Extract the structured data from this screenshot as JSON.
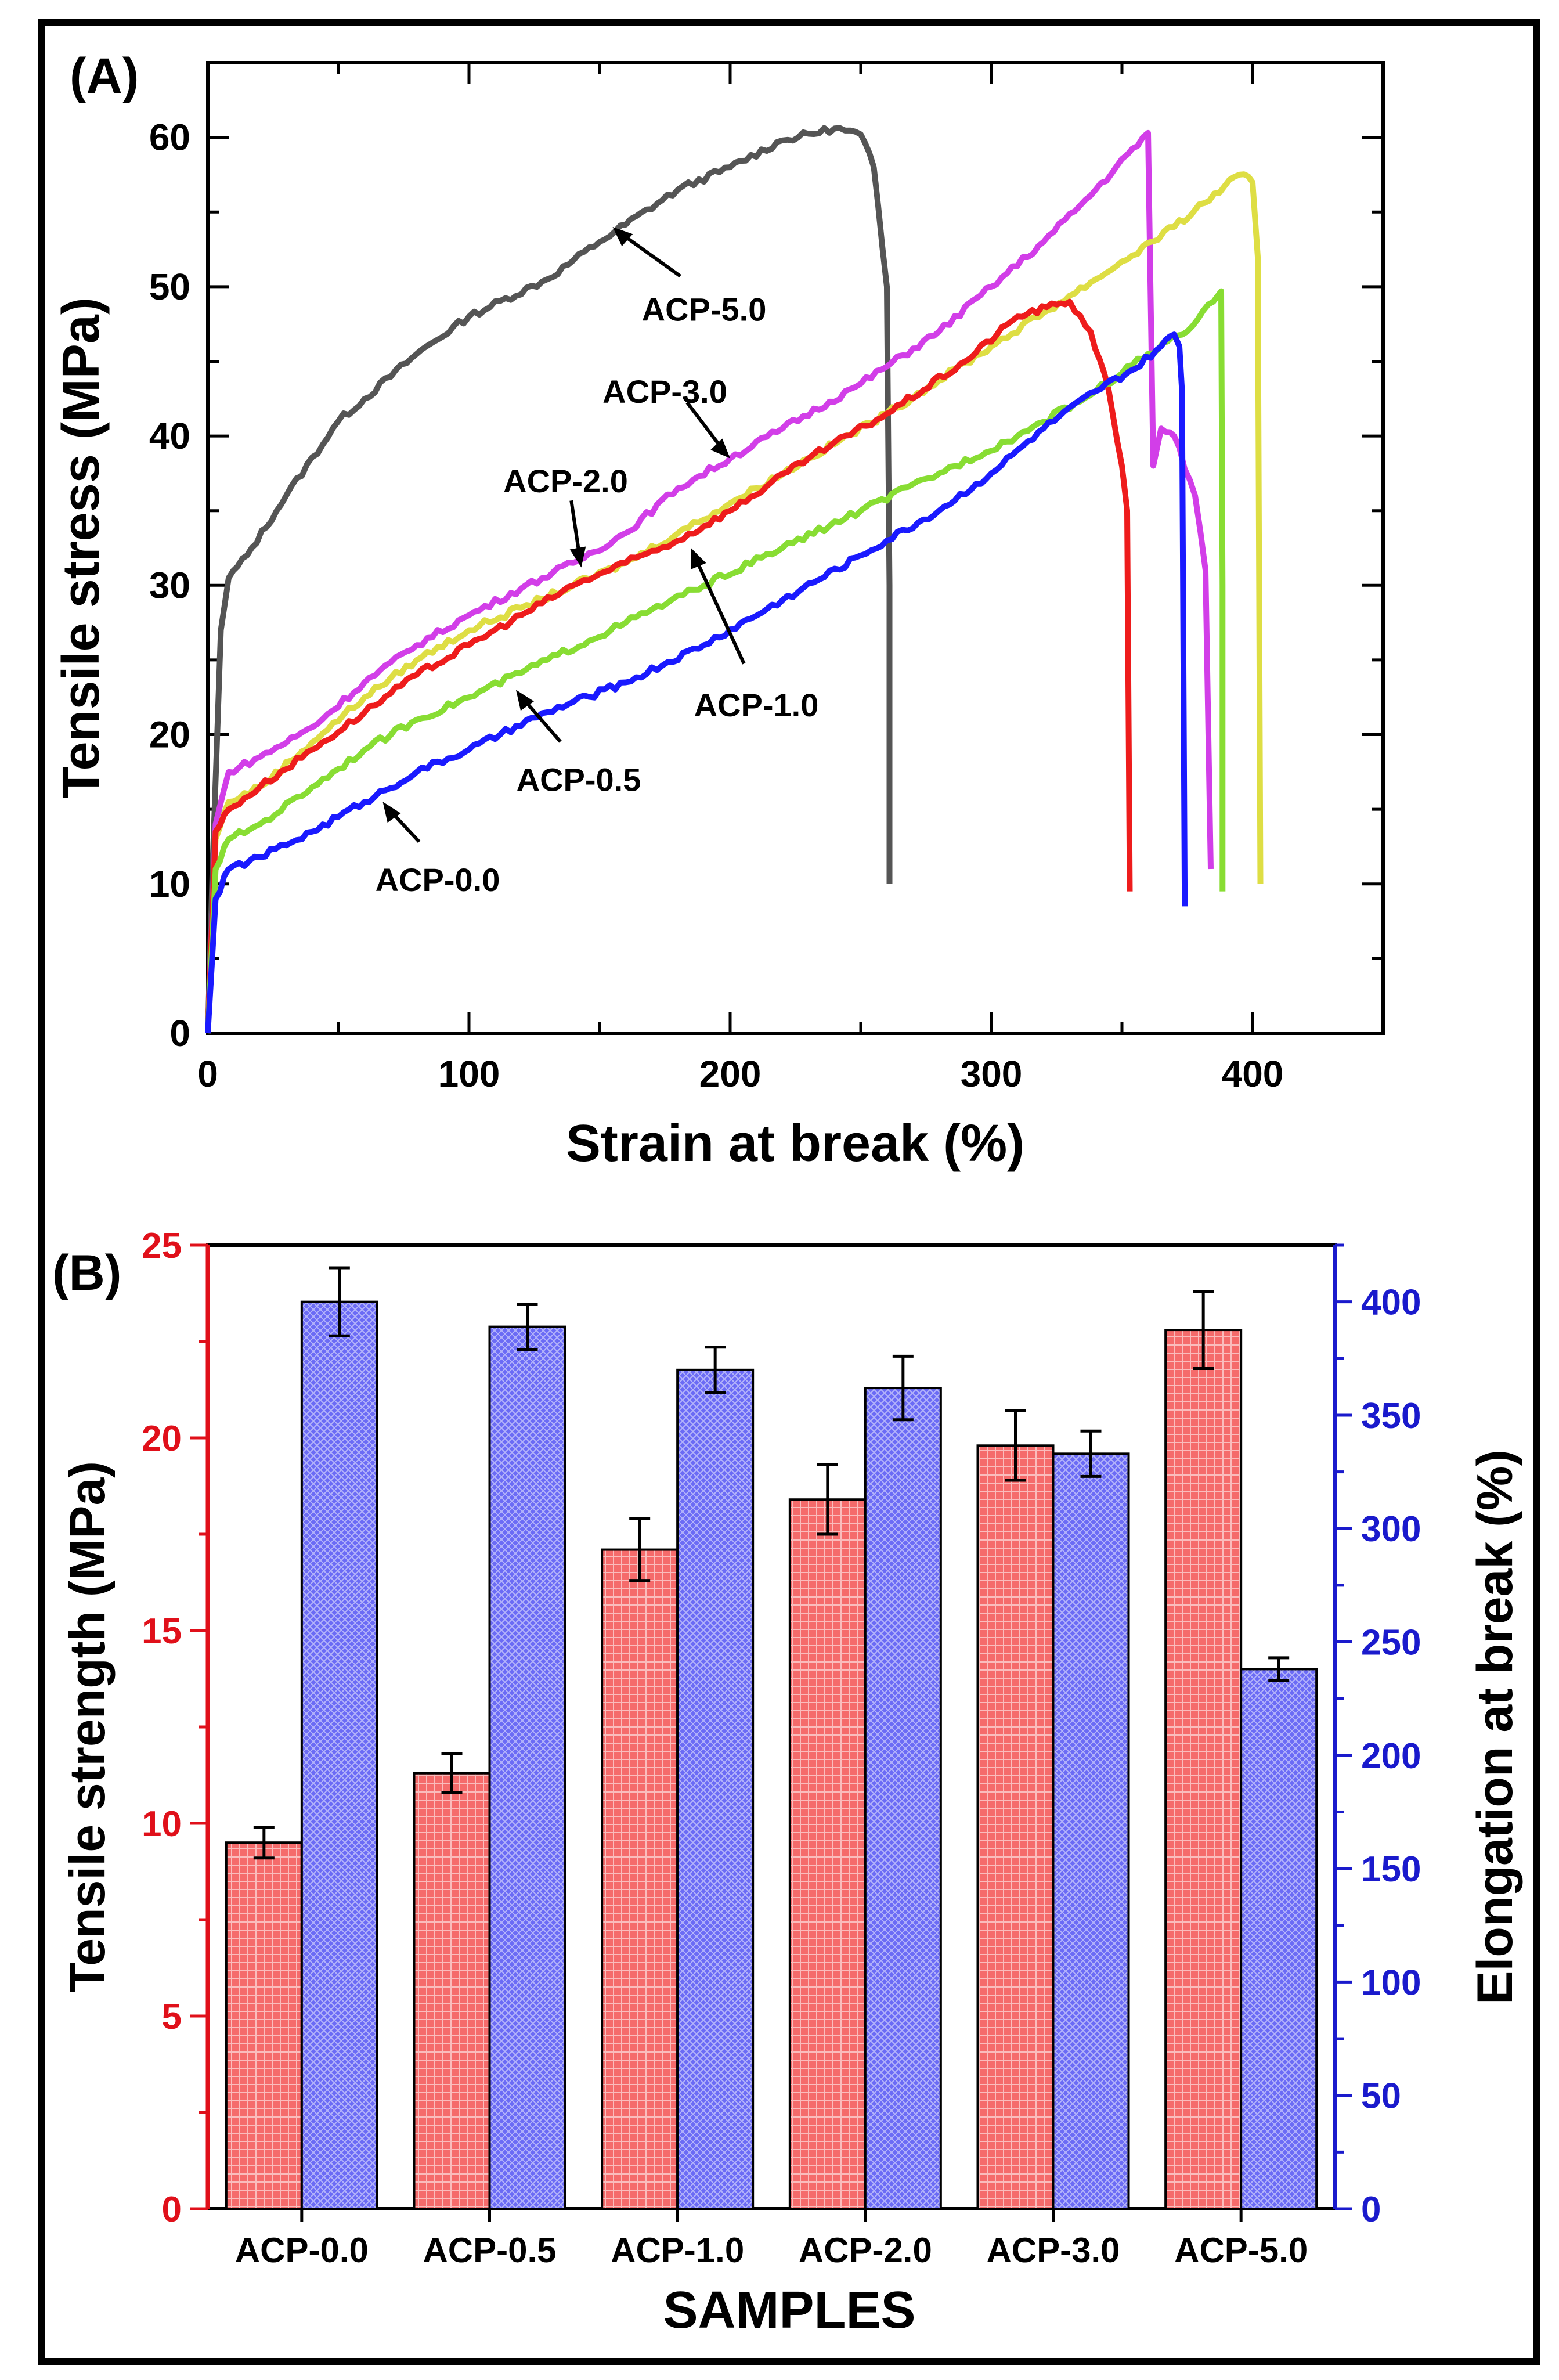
{
  "panels": {
    "a_label": "(A)",
    "b_label": "(B)"
  },
  "colors": {
    "ACP-0.0": "#1a1aff",
    "ACP-0.5": "#88dd33",
    "ACP-1.0": "#ee1c1c",
    "ACP-2.0": "#dede44",
    "ACP-3.0": "#d23ee8",
    "ACP-5.0": "#555555",
    "strength_bar": "#f56b6b",
    "elongation_bar": "#6b6bf5",
    "left_axis": "#e0101a",
    "right_axis": "#1a1acc"
  },
  "chart_data": [
    {
      "type": "line",
      "panel": "(A)",
      "title": "",
      "xlabel": "Strain at break (%)",
      "ylabel": "Tensile stress (MPa)",
      "xlim": [
        0,
        450
      ],
      "ylim": [
        0,
        65
      ],
      "xticks": [
        "0",
        "100",
        "200",
        "300",
        "400"
      ],
      "yticks": [
        "0",
        "10",
        "20",
        "30",
        "40",
        "50",
        "60"
      ],
      "grid": false,
      "series": [
        {
          "name": "ACP-5.0",
          "label": "ACP-5.0",
          "points": [
            [
              0,
              0
            ],
            [
              2,
              12
            ],
            [
              5,
              27
            ],
            [
              8,
              30.5
            ],
            [
              15,
              32
            ],
            [
              30,
              36
            ],
            [
              50,
              41
            ],
            [
              80,
              45.5
            ],
            [
              100,
              48
            ],
            [
              130,
              50.5
            ],
            [
              150,
              53
            ],
            [
              180,
              56.5
            ],
            [
              200,
              58
            ],
            [
              220,
              59.8
            ],
            [
              240,
              60.6
            ],
            [
              250,
              60.2
            ],
            [
              255,
              58
            ],
            [
              260,
              50
            ],
            [
              261,
              30
            ],
            [
              261,
              10
            ]
          ],
          "annotation_at": [
            155,
            54
          ],
          "text_at": [
            190,
            48.5
          ]
        },
        {
          "name": "ACP-3.0",
          "label": "ACP-3.0",
          "points": [
            [
              0,
              0
            ],
            [
              3,
              14
            ],
            [
              8,
              17.5
            ],
            [
              20,
              18.5
            ],
            [
              40,
              20.5
            ],
            [
              60,
              23.5
            ],
            [
              80,
              26
            ],
            [
              100,
              28
            ],
            [
              120,
              29.8
            ],
            [
              140,
              31.5
            ],
            [
              160,
              33.5
            ],
            [
              180,
              36.5
            ],
            [
              200,
              38.5
            ],
            [
              220,
              40.5
            ],
            [
              250,
              43.5
            ],
            [
              280,
              47
            ],
            [
              300,
              50
            ],
            [
              320,
              53
            ],
            [
              340,
              56.5
            ],
            [
              360,
              60.3
            ],
            [
              362,
              38
            ],
            [
              365,
              40.5
            ],
            [
              370,
              40
            ],
            [
              378,
              36
            ],
            [
              382,
              31
            ],
            [
              384,
              11
            ]
          ],
          "annotation_at": [
            200,
            38.5
          ],
          "text_at": [
            175,
            43
          ]
        },
        {
          "name": "ACP-2.0",
          "label": "ACP-2.0",
          "points": [
            [
              0,
              0
            ],
            [
              3,
              13
            ],
            [
              8,
              15.5
            ],
            [
              20,
              16.5
            ],
            [
              40,
              19.5
            ],
            [
              60,
              22.5
            ],
            [
              80,
              25
            ],
            [
              100,
              27
            ],
            [
              120,
              28.5
            ],
            [
              140,
              30
            ],
            [
              160,
              31.5
            ],
            [
              180,
              33.5
            ],
            [
              200,
              35.5
            ],
            [
              230,
              38.5
            ],
            [
              260,
              41.5
            ],
            [
              300,
              46
            ],
            [
              340,
              50.5
            ],
            [
              370,
              54
            ],
            [
              395,
              57.5
            ],
            [
              400,
              57
            ],
            [
              402,
              52
            ],
            [
              403,
              10
            ]
          ],
          "annotation_at": [
            143,
            31.2
          ],
          "text_at": [
            137,
            37
          ]
        },
        {
          "name": "ACP-1.0",
          "label": "ACP-1.0",
          "points": [
            [
              0,
              0
            ],
            [
              3,
              13.5
            ],
            [
              8,
              15
            ],
            [
              20,
              16.5
            ],
            [
              40,
              19
            ],
            [
              60,
              21.5
            ],
            [
              80,
              24
            ],
            [
              100,
              26
            ],
            [
              120,
              28
            ],
            [
              140,
              30
            ],
            [
              160,
              31.5
            ],
            [
              180,
              33
            ],
            [
              200,
              35
            ],
            [
              230,
              38.5
            ],
            [
              260,
              41.5
            ],
            [
              290,
              45
            ],
            [
              310,
              48
            ],
            [
              325,
              48.8
            ],
            [
              330,
              49
            ],
            [
              338,
              47
            ],
            [
              345,
              43
            ],
            [
              350,
              38
            ],
            [
              352,
              35
            ],
            [
              353,
              9.5
            ]
          ],
          "annotation_at": [
            185,
            32.5
          ],
          "text_at": [
            210,
            22
          ]
        },
        {
          "name": "ACP-0.5",
          "label": "ACP-0.5",
          "points": [
            [
              0,
              0
            ],
            [
              3,
              11
            ],
            [
              8,
              13
            ],
            [
              20,
              14
            ],
            [
              40,
              16.5
            ],
            [
              60,
              19
            ],
            [
              80,
              21
            ],
            [
              100,
              22.5
            ],
            [
              130,
              25
            ],
            [
              160,
              27.5
            ],
            [
              190,
              30
            ],
            [
              220,
              32.5
            ],
            [
              250,
              35
            ],
            [
              280,
              37.5
            ],
            [
              310,
              40
            ],
            [
              340,
              43
            ],
            [
              360,
              45.5
            ],
            [
              375,
              47
            ],
            [
              385,
              49
            ],
            [
              388,
              49.7
            ],
            [
              388.5,
              30
            ],
            [
              388.5,
              9.5
            ]
          ],
          "annotation_at": [
            118,
            23
          ],
          "text_at": [
            142,
            17
          ]
        },
        {
          "name": "ACP-0.0",
          "label": "ACP-0.0",
          "points": [
            [
              0,
              0
            ],
            [
              3,
              9
            ],
            [
              8,
              11
            ],
            [
              20,
              11.8
            ],
            [
              40,
              13.5
            ],
            [
              60,
              15.5
            ],
            [
              80,
              17.5
            ],
            [
              100,
              19
            ],
            [
              130,
              21.5
            ],
            [
              160,
              23.5
            ],
            [
              190,
              26
            ],
            [
              220,
              29
            ],
            [
              250,
              32
            ],
            [
              280,
              35
            ],
            [
              300,
              37.5
            ],
            [
              320,
              40.5
            ],
            [
              340,
              43
            ],
            [
              355,
              44.5
            ],
            [
              365,
              46
            ],
            [
              370,
              46.8
            ],
            [
              372,
              46
            ],
            [
              373,
              43
            ],
            [
              374,
              10
            ],
            [
              374,
              8.5
            ]
          ],
          "annotation_at": [
            67,
            15.5
          ],
          "text_at": [
            88,
            10.3
          ]
        }
      ]
    },
    {
      "type": "bar",
      "panel": "(B)",
      "title": "",
      "xlabel": "SAMPLES",
      "ylabel": "Tensile strength (MPa)",
      "y2label": "Elongation at break (%)",
      "categories": [
        "ACP-0.0",
        "ACP-0.5",
        "ACP-1.0",
        "ACP-2.0",
        "ACP-3.0",
        "ACP-5.0"
      ],
      "ylim": [
        0,
        25
      ],
      "y2lim": [
        0,
        425
      ],
      "yticks": [
        "0",
        "5",
        "10",
        "15",
        "20",
        "25"
      ],
      "y2ticks": [
        "0",
        "50",
        "100",
        "150",
        "200",
        "250",
        "300",
        "350",
        "400"
      ],
      "grid": false,
      "series": [
        {
          "name": "Tensile strength (MPa)",
          "axis": "left",
          "values": [
            9.5,
            11.3,
            17.1,
            18.4,
            19.8,
            22.8
          ],
          "errors": [
            0.4,
            0.5,
            0.8,
            0.9,
            0.9,
            1.0
          ]
        },
        {
          "name": "Elongation at break (%)",
          "axis": "right",
          "values": [
            400,
            389,
            370,
            362,
            333,
            238
          ],
          "errors": [
            15,
            10,
            10,
            14,
            10,
            5
          ]
        }
      ]
    }
  ]
}
